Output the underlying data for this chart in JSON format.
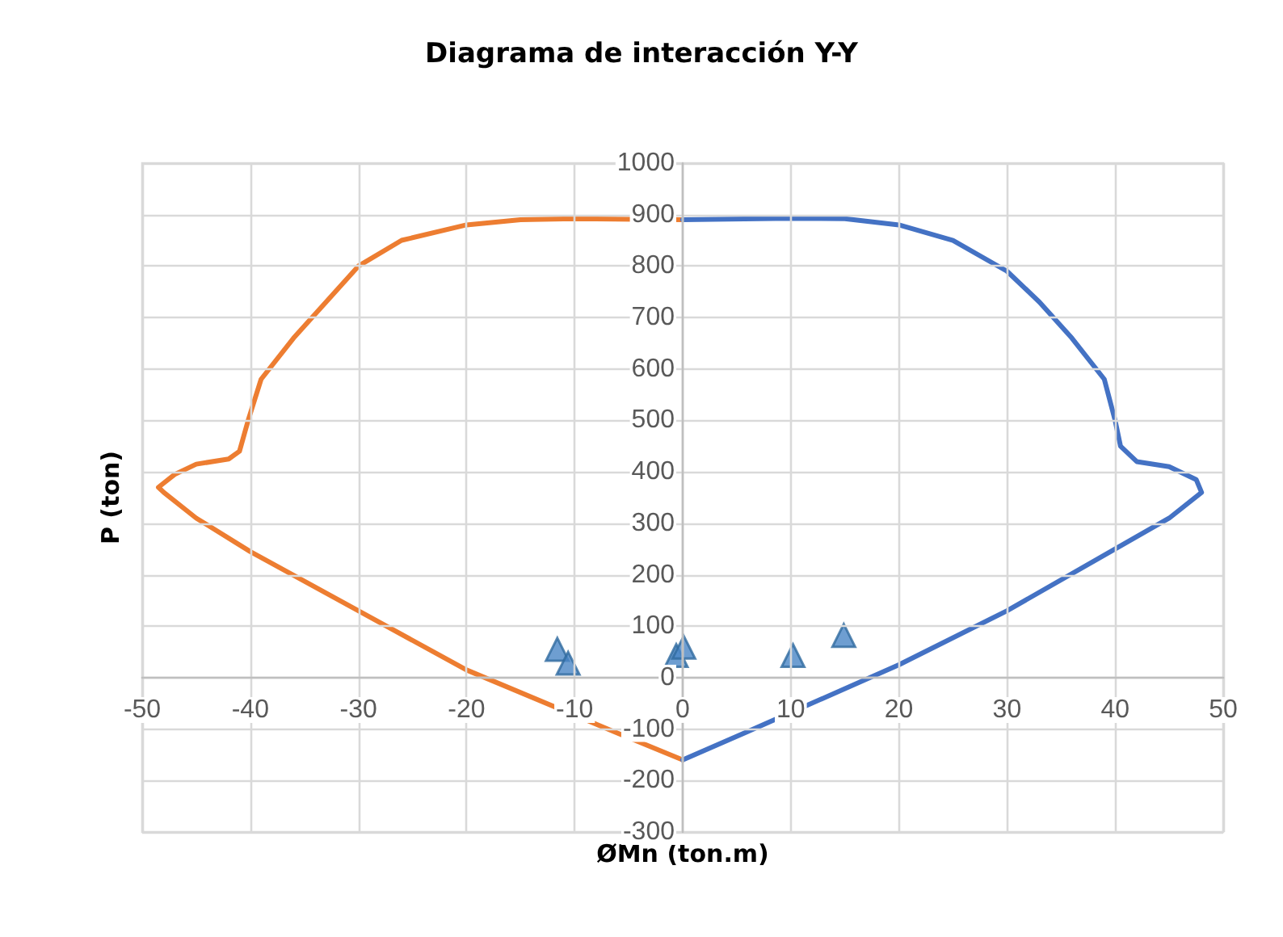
{
  "chart_data": {
    "type": "line",
    "title": "Diagrama de interacción Y-Y",
    "xlabel": "ØMn (ton.m)",
    "ylabel": "P (ton)",
    "xlim": [
      -50,
      50
    ],
    "xticks": [
      -50,
      -40,
      -30,
      -20,
      -10,
      0,
      10,
      20,
      30,
      40,
      50
    ],
    "ylim": [
      -300,
      1000
    ],
    "yticks": [
      -300,
      -200,
      -100,
      0,
      100,
      200,
      300,
      400,
      500,
      600,
      700,
      800,
      900,
      1000
    ],
    "grid": true,
    "marker": "none",
    "line_style": "solid",
    "series": [
      {
        "color": "#ed7d31",
        "x": [
          0,
          -10,
          -15,
          -20,
          -26,
          -30,
          -33,
          -36,
          -39,
          -40.2,
          -41,
          -42,
          -45,
          -47,
          -48.5,
          -48,
          -45,
          -40,
          -30,
          -20,
          -6,
          0
        ],
        "values": [
          890,
          892,
          890,
          880,
          850,
          800,
          730,
          660,
          580,
          500,
          440,
          425,
          415,
          395,
          370,
          360,
          310,
          245,
          130,
          15,
          -108,
          -160
        ]
      },
      {
        "color": "#4472c4",
        "x": [
          0,
          10,
          15,
          20,
          25,
          30,
          33,
          36,
          39,
          40,
          40.5,
          42,
          45,
          47.5,
          48,
          45,
          40,
          30,
          20,
          6,
          0
        ],
        "values": [
          890,
          893,
          892,
          880,
          850,
          790,
          730,
          660,
          580,
          500,
          450,
          420,
          410,
          385,
          360,
          310,
          250,
          130,
          25,
          -105,
          -160
        ]
      },
      {
        "type": "scatter",
        "marker": "triangle",
        "color": "#4a86c5",
        "x": [
          -11.6,
          -10.6,
          -0.6,
          0.1,
          10.2,
          14.9
        ],
        "values": [
          55,
          28,
          43,
          59,
          43,
          82
        ]
      }
    ]
  }
}
